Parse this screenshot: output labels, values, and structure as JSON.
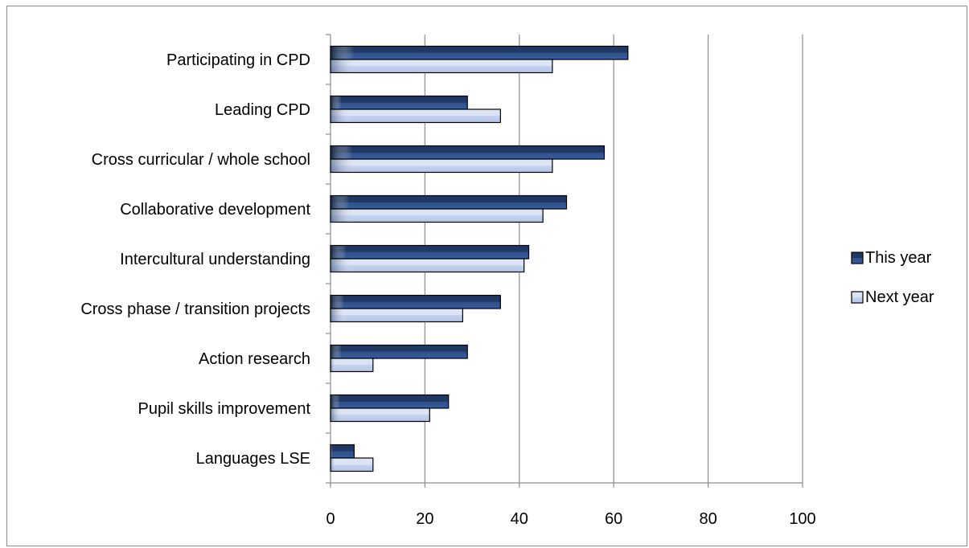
{
  "chart_data": {
    "type": "bar",
    "orientation": "horizontal",
    "categories": [
      "Participating in CPD",
      "Leading CPD",
      "Cross curricular / whole school",
      "Collaborative development",
      "Intercultural understanding",
      "Cross phase / transition projects",
      "Action research",
      "Pupil skills improvement",
      "Languages LSE"
    ],
    "series": [
      {
        "name": "This year",
        "color": "#1f3864",
        "values": [
          63,
          29,
          58,
          50,
          42,
          36,
          29,
          25,
          5
        ]
      },
      {
        "name": "Next year",
        "color": "#c5d3ee",
        "values": [
          47,
          36,
          47,
          45,
          41,
          28,
          9,
          21,
          9
        ]
      }
    ],
    "xlim": [
      0,
      100
    ],
    "xticks": [
      "0",
      "20",
      "40",
      "60",
      "80",
      "100"
    ],
    "grid": true,
    "legend": "right",
    "title": "",
    "xlabel": "",
    "ylabel": ""
  }
}
